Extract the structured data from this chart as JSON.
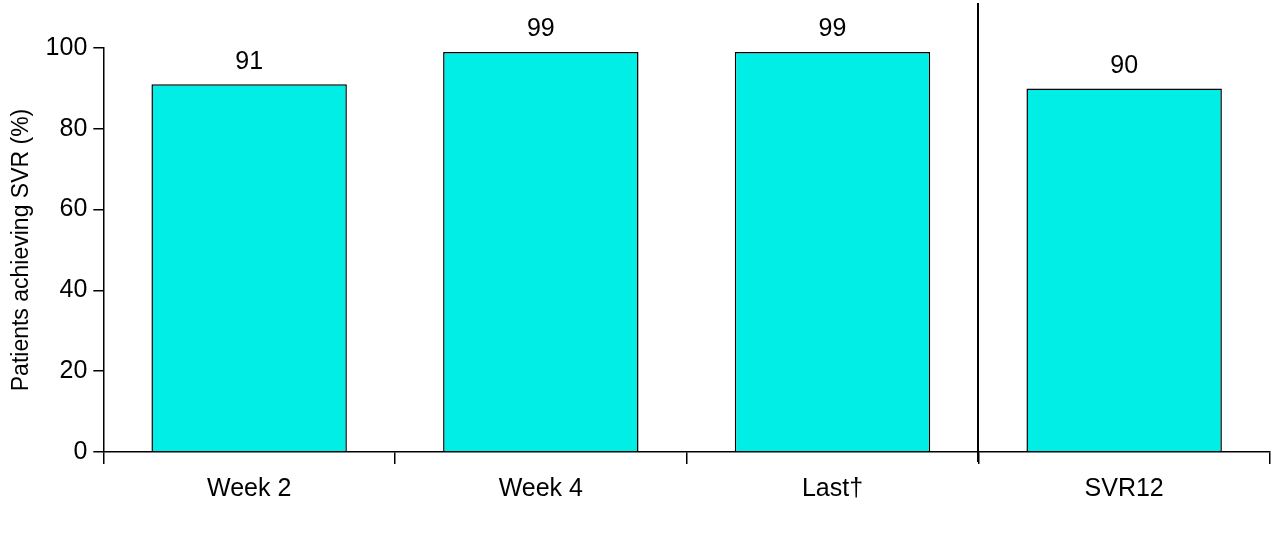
{
  "chart_data": {
    "type": "bar",
    "ylabel": "Patients achieving SVR (%)",
    "categories": [
      "Week 2",
      "Week 4",
      "Last†",
      "SVR12"
    ],
    "values": [
      91,
      99,
      99,
      90
    ],
    "color": "#00eee6",
    "ylim": [
      0,
      100
    ],
    "yticks": [
      0,
      20,
      40,
      60,
      80,
      100
    ],
    "grid": false,
    "legend": false,
    "data_labels": true
  }
}
